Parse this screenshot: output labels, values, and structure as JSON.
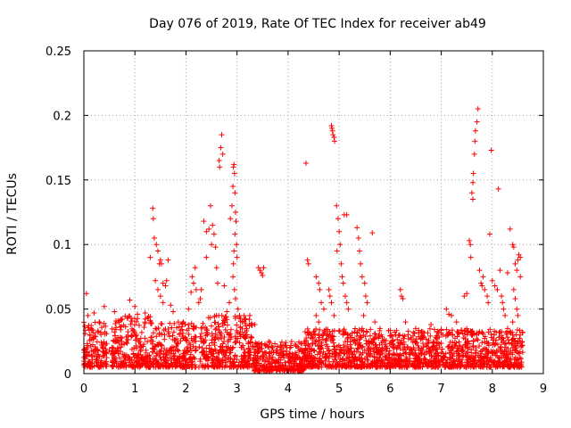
{
  "chart_data": {
    "type": "scatter",
    "title": "Day 076 of 2019, Rate Of TEC Index for receiver ab49",
    "xlabel": "GPS time / hours",
    "ylabel": "ROTI / TECUs",
    "xlim": [
      0,
      9
    ],
    "ylim": [
      0,
      0.25
    ],
    "x_ticks": [
      0,
      1,
      2,
      3,
      4,
      5,
      6,
      7,
      8,
      9
    ],
    "x_tick_labels": [
      "0",
      "1",
      "2",
      "3",
      "4",
      "5",
      "6",
      "7",
      "8",
      "9"
    ],
    "y_ticks": [
      0,
      0.05,
      0.1,
      0.15,
      0.2,
      0.25
    ],
    "y_tick_labels": [
      "0",
      "0.05",
      "0.1",
      "0.15",
      "0.2",
      "0.25"
    ],
    "grid": true,
    "marker": "+",
    "series": [
      {
        "name": "ROTI",
        "color": "#ff0000",
        "points": [
          [
            0.05,
            0.062
          ],
          [
            0.08,
            0.045
          ],
          [
            0.12,
            0.03
          ],
          [
            0.2,
            0.047
          ],
          [
            0.3,
            0.04
          ],
          [
            0.4,
            0.052
          ],
          [
            0.5,
            0.018
          ],
          [
            0.6,
            0.048
          ],
          [
            0.75,
            0.042
          ],
          [
            0.9,
            0.057
          ],
          [
            1.0,
            0.052
          ],
          [
            1.05,
            0.046
          ],
          [
            1.2,
            0.047
          ],
          [
            1.25,
            0.043
          ],
          [
            1.3,
            0.09
          ],
          [
            1.35,
            0.128
          ],
          [
            1.36,
            0.12
          ],
          [
            1.38,
            0.105
          ],
          [
            1.42,
            0.1
          ],
          [
            1.45,
            0.095
          ],
          [
            1.48,
            0.085
          ],
          [
            1.5,
            0.088
          ],
          [
            1.52,
            0.085
          ],
          [
            1.55,
            0.07
          ],
          [
            1.6,
            0.068
          ],
          [
            1.62,
            0.072
          ],
          [
            1.65,
            0.088
          ],
          [
            1.4,
            0.072
          ],
          [
            1.45,
            0.065
          ],
          [
            1.5,
            0.06
          ],
          [
            1.55,
            0.055
          ],
          [
            1.7,
            0.053
          ],
          [
            1.75,
            0.048
          ],
          [
            1.85,
            0.04
          ],
          [
            1.95,
            0.04
          ],
          [
            2.05,
            0.05
          ],
          [
            2.1,
            0.063
          ],
          [
            2.12,
            0.075
          ],
          [
            2.15,
            0.07
          ],
          [
            2.18,
            0.082
          ],
          [
            2.2,
            0.065
          ],
          [
            2.25,
            0.055
          ],
          [
            2.35,
            0.118
          ],
          [
            2.4,
            0.11
          ],
          [
            2.45,
            0.112
          ],
          [
            2.48,
            0.13
          ],
          [
            2.5,
            0.1
          ],
          [
            2.52,
            0.115
          ],
          [
            2.55,
            0.108
          ],
          [
            2.58,
            0.098
          ],
          [
            2.6,
            0.082
          ],
          [
            2.62,
            0.07
          ],
          [
            2.4,
            0.09
          ],
          [
            2.3,
            0.065
          ],
          [
            2.28,
            0.058
          ],
          [
            2.65,
            0.165
          ],
          [
            2.68,
            0.175
          ],
          [
            2.7,
            0.185
          ],
          [
            2.72,
            0.17
          ],
          [
            2.66,
            0.16
          ],
          [
            2.75,
            0.068
          ],
          [
            2.8,
            0.048
          ],
          [
            2.85,
            0.055
          ],
          [
            2.87,
            0.12
          ],
          [
            2.9,
            0.13
          ],
          [
            2.92,
            0.145
          ],
          [
            2.93,
            0.16
          ],
          [
            2.94,
            0.162
          ],
          [
            2.95,
            0.155
          ],
          [
            2.96,
            0.14
          ],
          [
            2.97,
            0.125
          ],
          [
            2.98,
            0.118
          ],
          [
            2.99,
            0.1
          ],
          [
            3.0,
            0.09
          ],
          [
            2.96,
            0.108
          ],
          [
            2.94,
            0.095
          ],
          [
            2.93,
            0.085
          ],
          [
            2.92,
            0.075
          ],
          [
            2.95,
            0.065
          ],
          [
            2.97,
            0.058
          ],
          [
            3.02,
            0.05
          ],
          [
            3.05,
            0.045
          ],
          [
            3.1,
            0.04
          ],
          [
            3.35,
            0.038
          ],
          [
            3.42,
            0.082
          ],
          [
            3.45,
            0.08
          ],
          [
            3.48,
            0.078
          ],
          [
            3.5,
            0.076
          ],
          [
            3.52,
            0.082
          ],
          [
            4.2,
            0.02
          ],
          [
            4.35,
            0.163
          ],
          [
            4.38,
            0.088
          ],
          [
            4.4,
            0.085
          ],
          [
            4.55,
            0.075
          ],
          [
            4.6,
            0.07
          ],
          [
            4.62,
            0.065
          ],
          [
            4.65,
            0.055
          ],
          [
            4.7,
            0.05
          ],
          [
            4.55,
            0.045
          ],
          [
            4.6,
            0.04
          ],
          [
            4.85,
            0.192
          ],
          [
            4.87,
            0.188
          ],
          [
            4.88,
            0.185
          ],
          [
            4.9,
            0.183
          ],
          [
            4.91,
            0.18
          ],
          [
            4.86,
            0.19
          ],
          [
            4.8,
            0.065
          ],
          [
            4.82,
            0.06
          ],
          [
            4.85,
            0.055
          ],
          [
            4.9,
            0.045
          ],
          [
            4.95,
            0.13
          ],
          [
            4.98,
            0.12
          ],
          [
            5.0,
            0.11
          ],
          [
            5.02,
            0.1
          ],
          [
            4.96,
            0.095
          ],
          [
            5.04,
            0.085
          ],
          [
            5.06,
            0.075
          ],
          [
            5.08,
            0.07
          ],
          [
            5.1,
            0.123
          ],
          [
            5.15,
            0.123
          ],
          [
            5.12,
            0.06
          ],
          [
            5.15,
            0.055
          ],
          [
            5.18,
            0.05
          ],
          [
            5.35,
            0.113
          ],
          [
            5.38,
            0.105
          ],
          [
            5.4,
            0.095
          ],
          [
            5.42,
            0.085
          ],
          [
            5.45,
            0.075
          ],
          [
            5.5,
            0.07
          ],
          [
            5.52,
            0.06
          ],
          [
            5.55,
            0.055
          ],
          [
            5.48,
            0.045
          ],
          [
            5.45,
            0.035
          ],
          [
            5.65,
            0.109
          ],
          [
            5.7,
            0.04
          ],
          [
            5.8,
            0.035
          ],
          [
            6.2,
            0.065
          ],
          [
            6.22,
            0.06
          ],
          [
            6.25,
            0.058
          ],
          [
            6.3,
            0.04
          ],
          [
            6.5,
            0.035
          ],
          [
            6.8,
            0.038
          ],
          [
            7.1,
            0.05
          ],
          [
            7.15,
            0.046
          ],
          [
            7.2,
            0.045
          ],
          [
            7.3,
            0.04
          ],
          [
            7.45,
            0.06
          ],
          [
            7.5,
            0.062
          ],
          [
            7.55,
            0.103
          ],
          [
            7.57,
            0.1
          ],
          [
            7.6,
            0.14
          ],
          [
            7.62,
            0.148
          ],
          [
            7.63,
            0.155
          ],
          [
            7.65,
            0.17
          ],
          [
            7.66,
            0.18
          ],
          [
            7.7,
            0.195
          ],
          [
            7.72,
            0.205
          ],
          [
            7.67,
            0.188
          ],
          [
            7.62,
            0.135
          ],
          [
            7.58,
            0.09
          ],
          [
            7.75,
            0.08
          ],
          [
            7.78,
            0.07
          ],
          [
            7.8,
            0.068
          ],
          [
            7.82,
            0.075
          ],
          [
            7.85,
            0.065
          ],
          [
            7.9,
            0.06
          ],
          [
            7.92,
            0.055
          ],
          [
            7.95,
            0.108
          ],
          [
            7.98,
            0.173
          ],
          [
            8.0,
            0.072
          ],
          [
            8.05,
            0.068
          ],
          [
            8.1,
            0.065
          ],
          [
            8.12,
            0.143
          ],
          [
            8.15,
            0.08
          ],
          [
            8.18,
            0.06
          ],
          [
            8.2,
            0.055
          ],
          [
            8.22,
            0.05
          ],
          [
            8.25,
            0.045
          ],
          [
            8.3,
            0.078
          ],
          [
            8.35,
            0.112
          ],
          [
            8.4,
            0.1
          ],
          [
            8.42,
            0.098
          ],
          [
            8.45,
            0.085
          ],
          [
            8.48,
            0.08
          ],
          [
            8.5,
            0.088
          ],
          [
            8.52,
            0.092
          ],
          [
            8.55,
            0.09
          ],
          [
            8.42,
            0.065
          ],
          [
            8.45,
            0.058
          ],
          [
            8.48,
            0.05
          ],
          [
            8.5,
            0.045
          ],
          [
            8.4,
            0.04
          ],
          [
            8.3,
            0.035
          ],
          [
            8.55,
            0.075
          ]
        ]
      }
    ],
    "dense_band": {
      "description_values": "background cluster of ROTI samples",
      "segments": [
        {
          "t_start": 0.0,
          "t_end": 0.45,
          "roti_min": 0.005,
          "roti_max": 0.04
        },
        {
          "t_start": 0.55,
          "t_end": 1.3,
          "roti_min": 0.005,
          "roti_max": 0.045
        },
        {
          "t_start": 1.3,
          "t_end": 2.2,
          "roti_min": 0.005,
          "roti_max": 0.04
        },
        {
          "t_start": 2.25,
          "t_end": 3.3,
          "roti_min": 0.005,
          "roti_max": 0.045
        },
        {
          "t_start": 3.3,
          "t_end": 4.35,
          "roti_min": 0.002,
          "roti_max": 0.025
        },
        {
          "t_start": 4.3,
          "t_end": 5.3,
          "roti_min": 0.005,
          "roti_max": 0.035
        },
        {
          "t_start": 5.3,
          "t_end": 6.5,
          "roti_min": 0.005,
          "roti_max": 0.035
        },
        {
          "t_start": 6.5,
          "t_end": 7.6,
          "roti_min": 0.005,
          "roti_max": 0.035
        },
        {
          "t_start": 7.6,
          "t_end": 8.6,
          "roti_min": 0.005,
          "roti_max": 0.035
        }
      ]
    }
  }
}
